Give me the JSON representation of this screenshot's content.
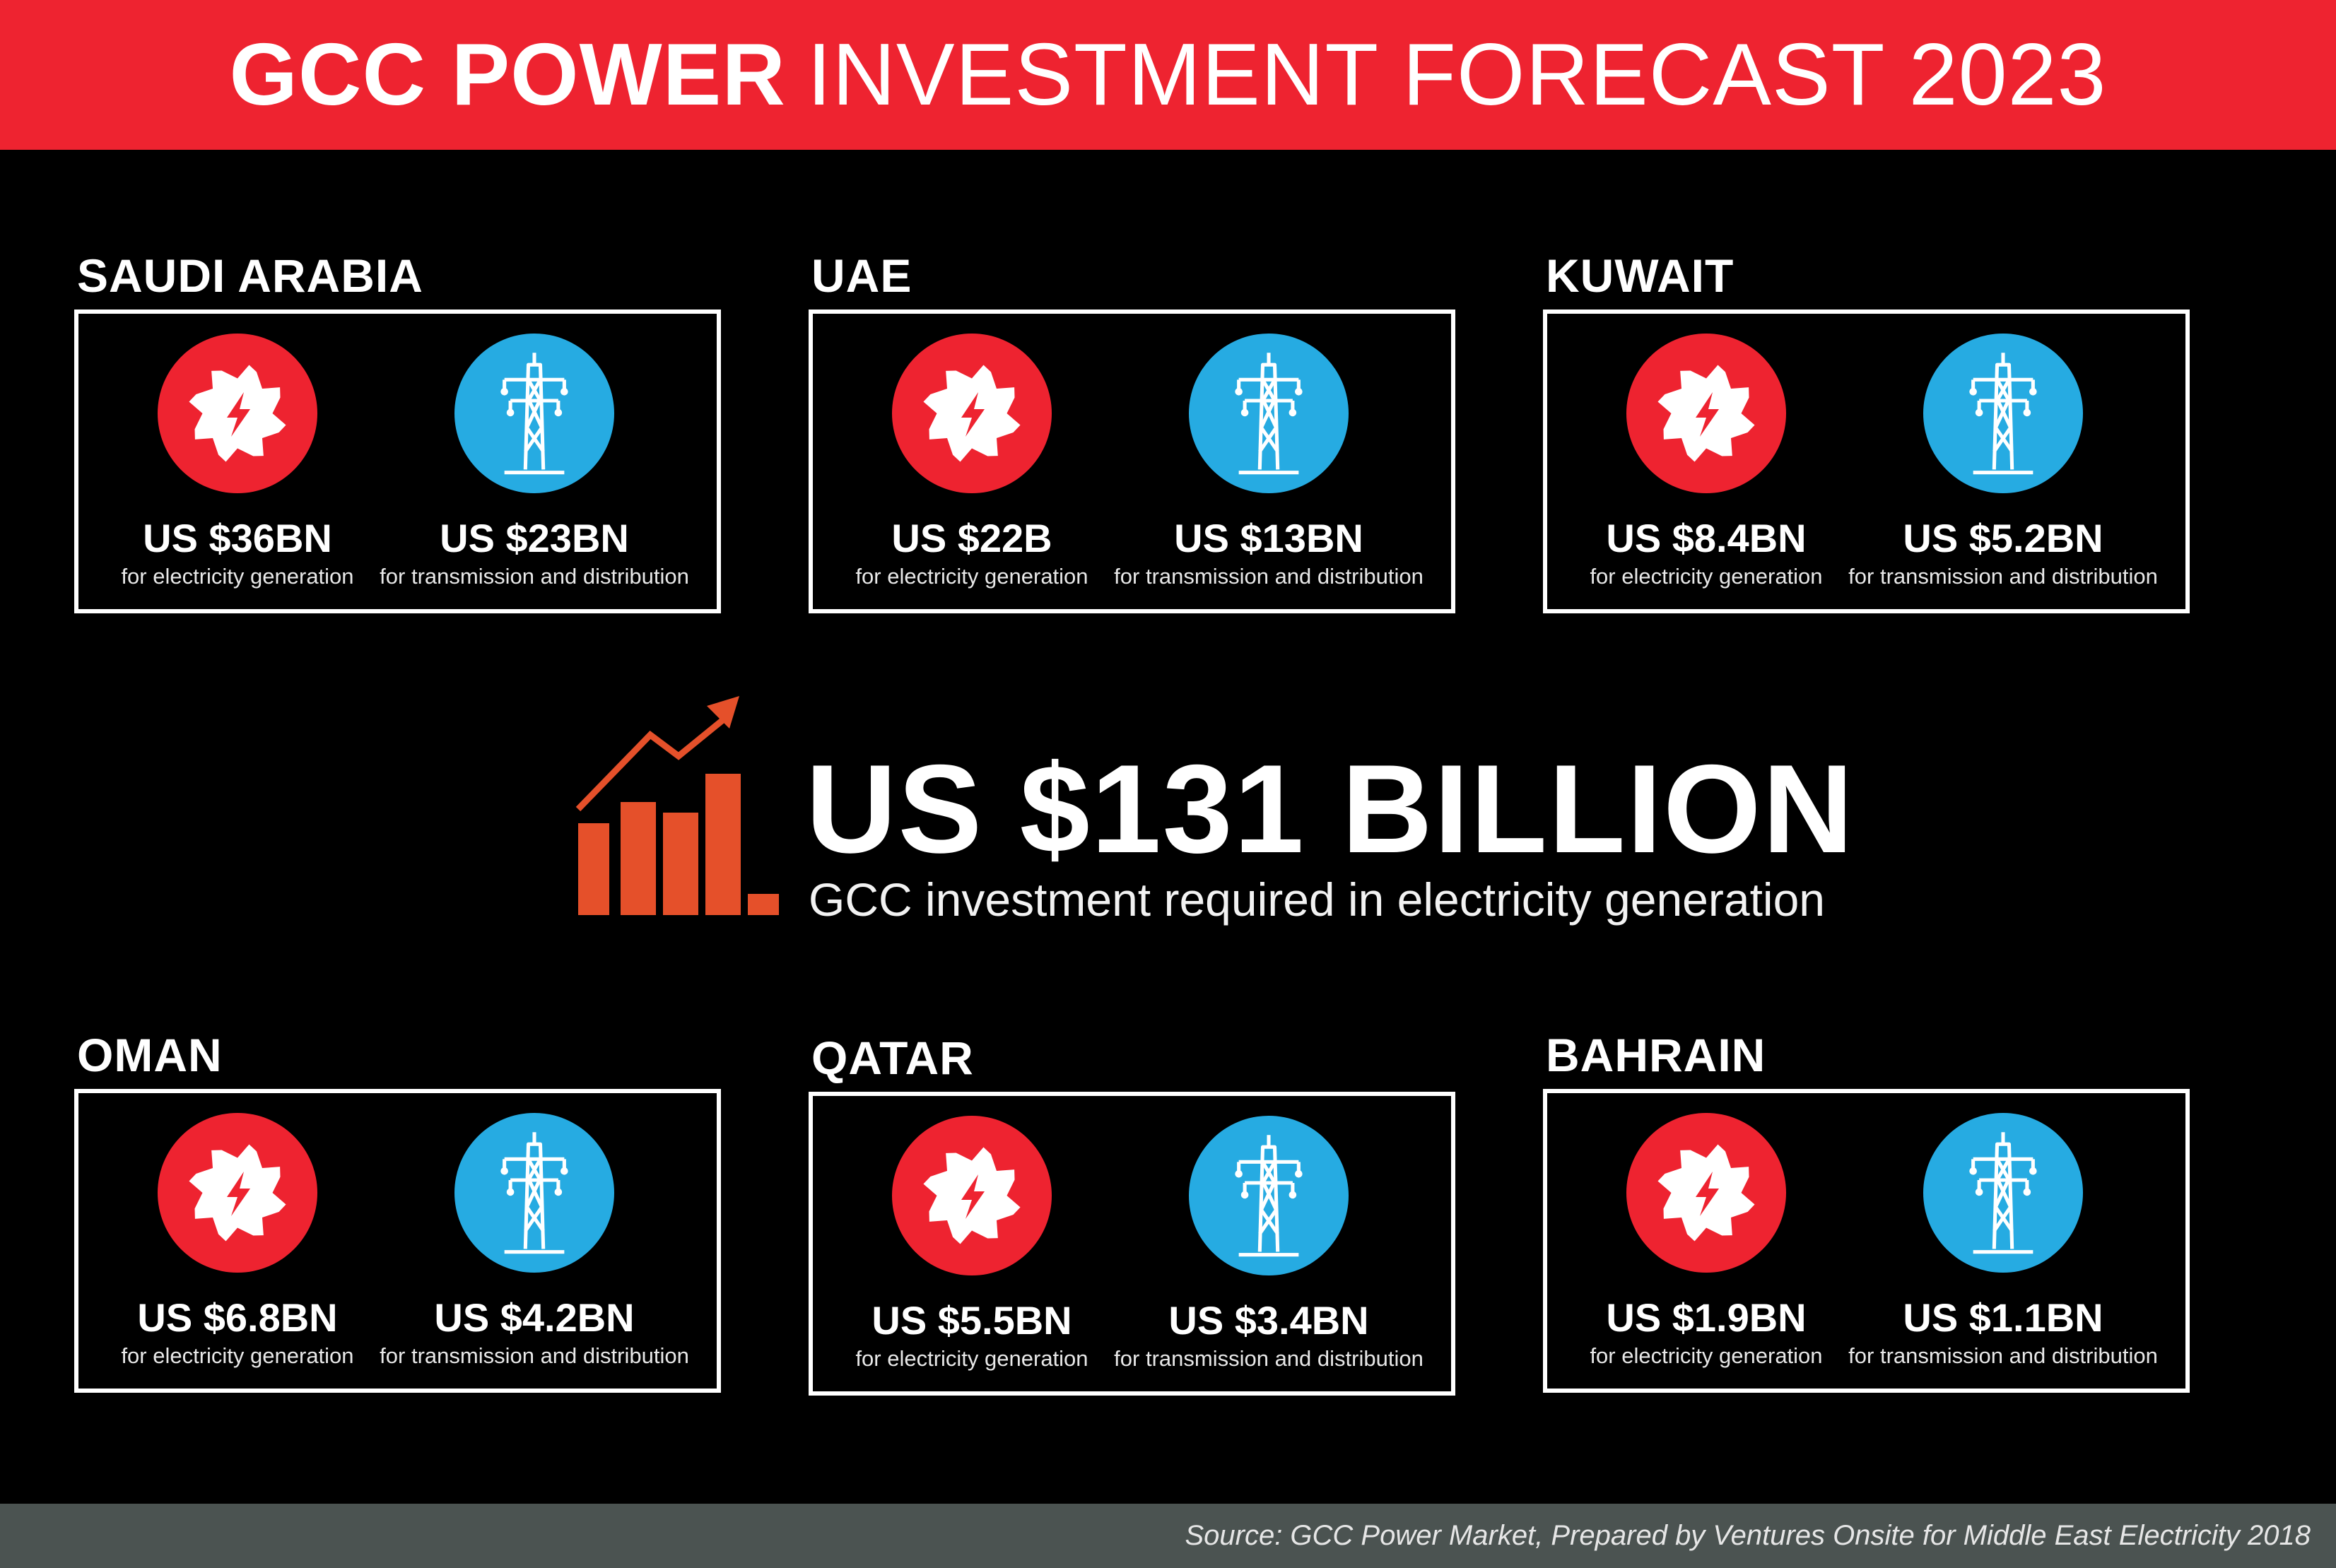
{
  "header": {
    "title_bold": "GCC POWER",
    "title_light": "INVESTMENT FORECAST 2023"
  },
  "colors": {
    "header_bg": "#ee2330",
    "generation": "#ee2330",
    "transmission": "#26abe2",
    "chart_icon": "#e5502a",
    "footer_bg": "#4b5351"
  },
  "icons": {
    "generation": "turbine-bolt-icon",
    "transmission": "power-pylon-icon",
    "center": "bar-growth-icon"
  },
  "countries": [
    {
      "name": "SAUDI ARABIA",
      "generation": {
        "value": "US $36BN",
        "label": "for electricity generation"
      },
      "transmission": {
        "value": "US $23BN",
        "label": "for transmission and distribution"
      }
    },
    {
      "name": "UAE",
      "generation": {
        "value": "US $22B",
        "label": "for electricity generation"
      },
      "transmission": {
        "value": "US $13BN",
        "label": "for transmission and distribution"
      }
    },
    {
      "name": "KUWAIT",
      "generation": {
        "value": "US $8.4BN",
        "label": "for electricity generation"
      },
      "transmission": {
        "value": "US $5.2BN",
        "label": "for transmission and distribution"
      }
    },
    {
      "name": "OMAN",
      "generation": {
        "value": "US $6.8BN",
        "label": "for electricity generation"
      },
      "transmission": {
        "value": "US $4.2BN",
        "label": "for transmission and distribution"
      }
    },
    {
      "name": "QATAR",
      "generation": {
        "value": "US $5.5BN",
        "label": "for electricity generation"
      },
      "transmission": {
        "value": "US $3.4BN",
        "label": "for transmission and distribution"
      }
    },
    {
      "name": "BAHRAIN",
      "generation": {
        "value": "US $1.9BN",
        "label": "for electricity generation"
      },
      "transmission": {
        "value": "US $1.1BN",
        "label": "for transmission and distribution"
      }
    }
  ],
  "total": {
    "value": "US $131 BILLION",
    "label": "GCC investment required in electricity generation"
  },
  "footer": {
    "source": "Source: GCC Power Market, Prepared by Ventures Onsite for Middle East Electricity 2018"
  }
}
